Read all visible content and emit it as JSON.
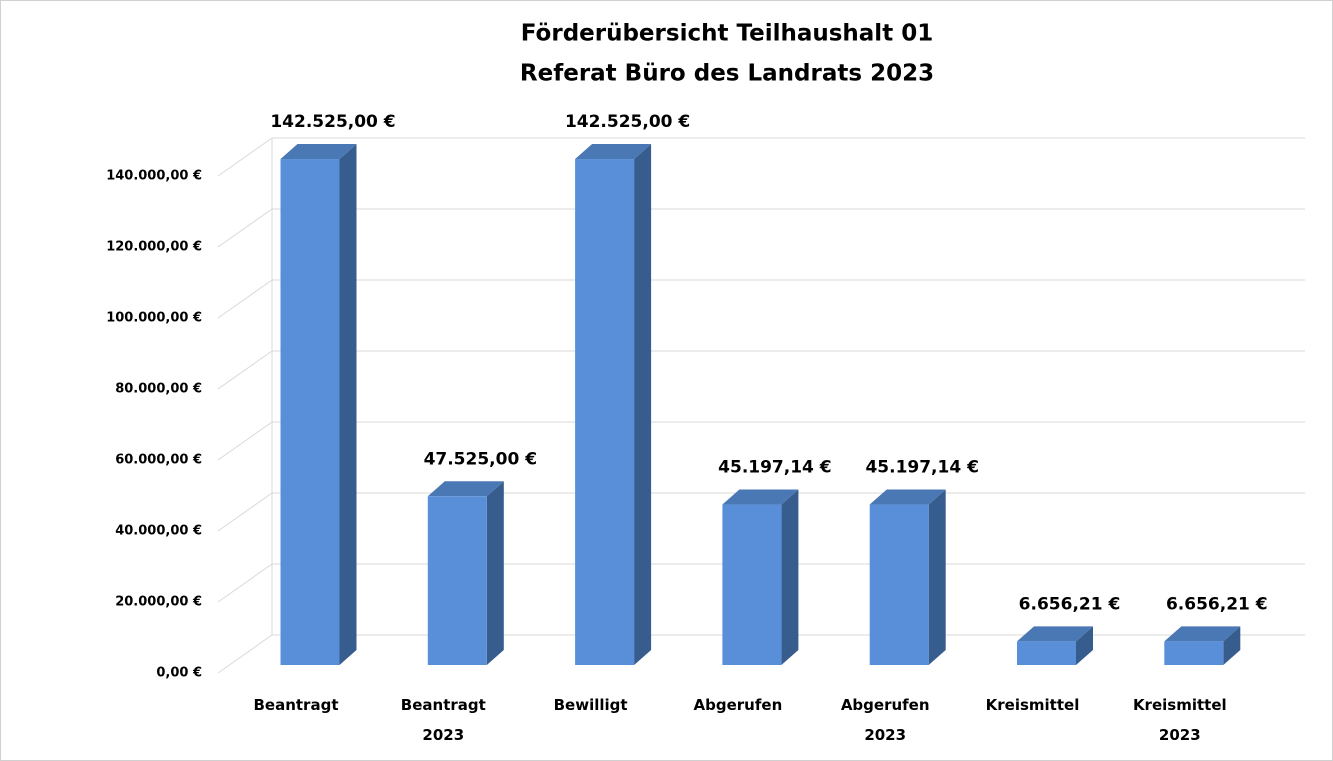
{
  "chart_data": {
    "type": "bar3d",
    "title": "Förderübersicht  Teilhaushalt  01",
    "subtitle": "Referat Büro des Landrats 2023",
    "categories": [
      "Beantragt",
      "Beantragt 2023",
      "Bewilligt",
      "Abgerufen",
      "Abgerufen 2023",
      "Kreismittel",
      "Kreismittel 2023"
    ],
    "values": [
      142525,
      47525,
      142525,
      45197.14,
      45197.14,
      6656.21,
      6656.21
    ],
    "value_labels": [
      "142.525,00 €",
      "47.525,00 €",
      "142.525,00 €",
      "45.197,14 €",
      "45.197,14 €",
      "6.656,21 €",
      "6.656,21 €"
    ],
    "color": "#588fd8",
    "ylim": [
      0,
      140000
    ],
    "yticks": [
      {
        "value": 0,
        "label": "0,00 €"
      },
      {
        "value": 20000,
        "label": "20.000,00 €"
      },
      {
        "value": 40000,
        "label": "40.000,00 €"
      },
      {
        "value": 60000,
        "label": "60.000,00 €"
      },
      {
        "value": 80000,
        "label": "80.000,00 €"
      },
      {
        "value": 100000,
        "label": "100.000,00 €"
      },
      {
        "value": 120000,
        "label": "120.000,00 €"
      },
      {
        "value": 140000,
        "label": "140.000,00 €"
      }
    ],
    "grid": true
  }
}
